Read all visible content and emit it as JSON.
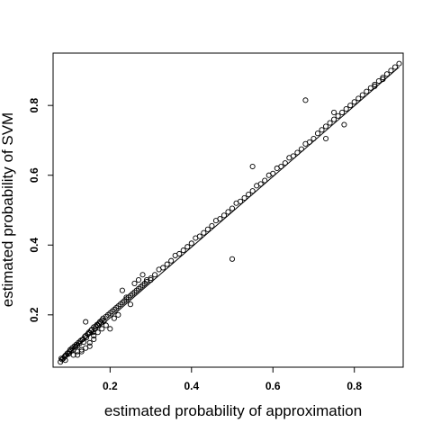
{
  "chart_data": {
    "type": "scatter",
    "title": "",
    "xlabel": "estimated probability of approximation",
    "ylabel": "estimated probability of SVM",
    "xlim": [
      0.06,
      0.92
    ],
    "ylim": [
      0.05,
      0.95
    ],
    "xticks": [
      0.2,
      0.4,
      0.6,
      0.8
    ],
    "yticks": [
      0.2,
      0.4,
      0.6,
      0.8
    ],
    "xtick_labels": [
      "0.2",
      "0.4",
      "0.6",
      "0.8"
    ],
    "ytick_labels": [
      "0.2",
      "0.4",
      "0.6",
      "0.8"
    ],
    "grid": false,
    "reference_line": {
      "x": [
        0.08,
        0.91
      ],
      "y": [
        0.07,
        0.91
      ]
    },
    "series": [
      {
        "marker": "open-circle",
        "x": [
          0.078,
          0.082,
          0.085,
          0.088,
          0.09,
          0.092,
          0.095,
          0.098,
          0.1,
          0.102,
          0.105,
          0.107,
          0.11,
          0.112,
          0.115,
          0.117,
          0.12,
          0.122,
          0.125,
          0.127,
          0.13,
          0.133,
          0.135,
          0.138,
          0.14,
          0.142,
          0.145,
          0.148,
          0.15,
          0.153,
          0.155,
          0.158,
          0.16,
          0.163,
          0.165,
          0.168,
          0.17,
          0.172,
          0.175,
          0.178,
          0.18,
          0.183,
          0.185,
          0.19,
          0.195,
          0.2,
          0.205,
          0.21,
          0.215,
          0.22,
          0.225,
          0.23,
          0.235,
          0.24,
          0.245,
          0.25,
          0.255,
          0.26,
          0.265,
          0.27,
          0.275,
          0.28,
          0.285,
          0.29,
          0.3,
          0.31,
          0.32,
          0.33,
          0.34,
          0.35,
          0.36,
          0.37,
          0.38,
          0.39,
          0.4,
          0.41,
          0.42,
          0.43,
          0.44,
          0.45,
          0.46,
          0.47,
          0.48,
          0.49,
          0.5,
          0.51,
          0.52,
          0.53,
          0.54,
          0.55,
          0.56,
          0.57,
          0.58,
          0.59,
          0.6,
          0.61,
          0.62,
          0.63,
          0.64,
          0.65,
          0.66,
          0.67,
          0.68,
          0.69,
          0.7,
          0.71,
          0.72,
          0.73,
          0.74,
          0.75,
          0.76,
          0.77,
          0.78,
          0.79,
          0.8,
          0.81,
          0.82,
          0.83,
          0.84,
          0.85,
          0.86,
          0.87,
          0.88,
          0.89,
          0.9,
          0.91,
          0.08,
          0.09,
          0.1,
          0.11,
          0.12,
          0.13,
          0.14,
          0.15,
          0.16,
          0.17,
          0.18,
          0.19,
          0.2,
          0.21,
          0.22,
          0.23,
          0.24,
          0.25,
          0.26,
          0.27,
          0.28,
          0.29,
          0.3,
          0.12,
          0.13,
          0.14,
          0.15,
          0.16,
          0.5,
          0.55,
          0.68,
          0.775,
          0.75,
          0.73,
          0.85,
          0.87
        ],
        "y": [
          0.065,
          0.072,
          0.075,
          0.08,
          0.083,
          0.085,
          0.09,
          0.088,
          0.095,
          0.1,
          0.098,
          0.105,
          0.1,
          0.11,
          0.108,
          0.115,
          0.112,
          0.12,
          0.118,
          0.125,
          0.128,
          0.13,
          0.122,
          0.138,
          0.14,
          0.135,
          0.145,
          0.15,
          0.148,
          0.155,
          0.158,
          0.15,
          0.165,
          0.16,
          0.168,
          0.172,
          0.17,
          0.175,
          0.18,
          0.178,
          0.185,
          0.19,
          0.182,
          0.195,
          0.2,
          0.205,
          0.21,
          0.215,
          0.22,
          0.225,
          0.23,
          0.235,
          0.24,
          0.245,
          0.25,
          0.255,
          0.26,
          0.265,
          0.27,
          0.275,
          0.28,
          0.285,
          0.29,
          0.3,
          0.305,
          0.315,
          0.33,
          0.335,
          0.345,
          0.355,
          0.37,
          0.375,
          0.385,
          0.395,
          0.405,
          0.42,
          0.425,
          0.435,
          0.445,
          0.455,
          0.47,
          0.475,
          0.485,
          0.495,
          0.505,
          0.52,
          0.525,
          0.535,
          0.545,
          0.555,
          0.57,
          0.575,
          0.585,
          0.6,
          0.605,
          0.62,
          0.625,
          0.635,
          0.65,
          0.655,
          0.665,
          0.675,
          0.69,
          0.695,
          0.705,
          0.72,
          0.73,
          0.74,
          0.75,
          0.76,
          0.77,
          0.78,
          0.79,
          0.8,
          0.81,
          0.82,
          0.83,
          0.84,
          0.85,
          0.86,
          0.87,
          0.88,
          0.89,
          0.9,
          0.91,
          0.92,
          0.075,
          0.07,
          0.09,
          0.085,
          0.095,
          0.1,
          0.105,
          0.12,
          0.14,
          0.15,
          0.16,
          0.17,
          0.16,
          0.19,
          0.2,
          0.27,
          0.25,
          0.23,
          0.29,
          0.3,
          0.315,
          0.295,
          0.3,
          0.085,
          0.095,
          0.18,
          0.11,
          0.13,
          0.36,
          0.625,
          0.815,
          0.745,
          0.78,
          0.705,
          0.855,
          0.875
        ]
      }
    ]
  }
}
